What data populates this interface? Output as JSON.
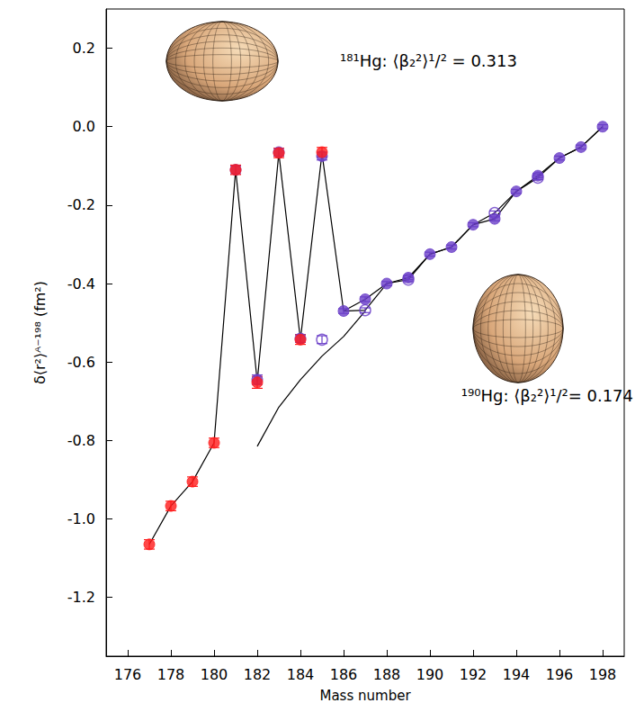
{
  "chart_data": {
    "type": "scatter",
    "x_label": "Mass number",
    "y_label": "δ⟨r²⟩ᴬ⁻¹⁹⁸ (fm²)",
    "xlim": [
      175,
      199
    ],
    "xticks": [
      176,
      178,
      180,
      182,
      184,
      186,
      188,
      190,
      192,
      194,
      196,
      198
    ],
    "ylim": [
      -1.35,
      0.3
    ],
    "yticks": [
      -1.2,
      {
        "value": -1,
        "label": "-1.0"
      },
      -0.8,
      -0.6,
      -0.4,
      -0.2,
      {
        "value": 0,
        "label": "0.0"
      },
      0.2
    ],
    "grid": false,
    "annotations": [
      "¹⁸¹Hg: ⟨β₂²⟩¹/² = 0.313",
      "¹⁹⁰Hg: ⟨β₂²⟩¹/²= 0.174"
    ],
    "series": [
      {
        "type": "line",
        "color": "#000000",
        "marker": "none",
        "line_style": "solid",
        "x": [
          177,
          178,
          179,
          180,
          181,
          182,
          183,
          184,
          185,
          186,
          187,
          188,
          189,
          190,
          191,
          192,
          193,
          194,
          195,
          196,
          197,
          198
        ],
        "values": [
          -1.065,
          -0.967,
          -0.905,
          -0.806,
          -0.11,
          -0.65,
          -0.067,
          -0.543,
          -0.068,
          -0.47,
          -0.44,
          -0.4,
          -0.385,
          -0.325,
          -0.307,
          -0.25,
          -0.235,
          -0.165,
          -0.125,
          -0.08,
          -0.052,
          0.0
        ]
      },
      {
        "type": "line",
        "color": "#000000",
        "marker": "none",
        "line_style": "solid",
        "x": [
          186,
          187,
          188,
          189,
          190,
          191,
          192,
          193,
          194,
          195,
          196,
          197,
          198
        ],
        "values": [
          -0.47,
          -0.468,
          -0.4,
          -0.39,
          -0.325,
          -0.307,
          -0.25,
          -0.22,
          -0.165,
          -0.13,
          -0.08,
          -0.052,
          0.0
        ]
      },
      {
        "type": "line",
        "color": "#000000",
        "marker": "none",
        "line_style": "solid",
        "x": [
          182,
          183,
          184,
          185,
          186,
          187
        ],
        "values": [
          -0.815,
          -0.715,
          -0.645,
          -0.585,
          -0.535,
          -0.47
        ]
      },
      {
        "type": "scatter",
        "color": "#6a3fc8",
        "marker": "circle",
        "x": [
          181,
          182,
          183,
          184,
          185,
          186,
          187,
          188,
          189,
          190,
          191,
          192,
          193,
          194,
          195,
          196,
          197,
          198
        ],
        "values": [
          -0.11,
          -0.645,
          -0.065,
          -0.54,
          -0.075,
          -0.47,
          -0.44,
          -0.4,
          -0.385,
          -0.325,
          -0.307,
          -0.25,
          -0.235,
          -0.165,
          -0.125,
          -0.08,
          -0.052,
          0.0
        ],
        "errors": [
          0.01,
          0.012,
          0.01,
          0.01,
          0.01,
          0.006,
          0.006,
          0.005,
          0.005,
          0.005,
          0.005,
          0.005,
          0.005,
          0.005,
          0.005,
          0.005,
          0.005,
          0.005
        ]
      },
      {
        "type": "scatter",
        "color": "#6a3fc8",
        "marker": "open circle",
        "x": [
          185,
          187,
          189,
          193,
          195
        ],
        "values": [
          -0.543,
          -0.468,
          -0.39,
          -0.22,
          -0.13
        ],
        "errors": [
          0.01,
          0.006,
          0.005,
          0.005,
          0.005
        ]
      },
      {
        "type": "scatter",
        "color": "#ff1a1a",
        "marker": "circle",
        "x": [
          177,
          178,
          179,
          180,
          181,
          182,
          183,
          184,
          185
        ],
        "values": [
          -1.065,
          -0.967,
          -0.905,
          -0.806,
          -0.11,
          -0.652,
          -0.067,
          -0.543,
          -0.065
        ],
        "errors": [
          0.012,
          0.012,
          0.012,
          0.012,
          0.012,
          0.015,
          0.012,
          0.012,
          0.012
        ]
      }
    ]
  }
}
